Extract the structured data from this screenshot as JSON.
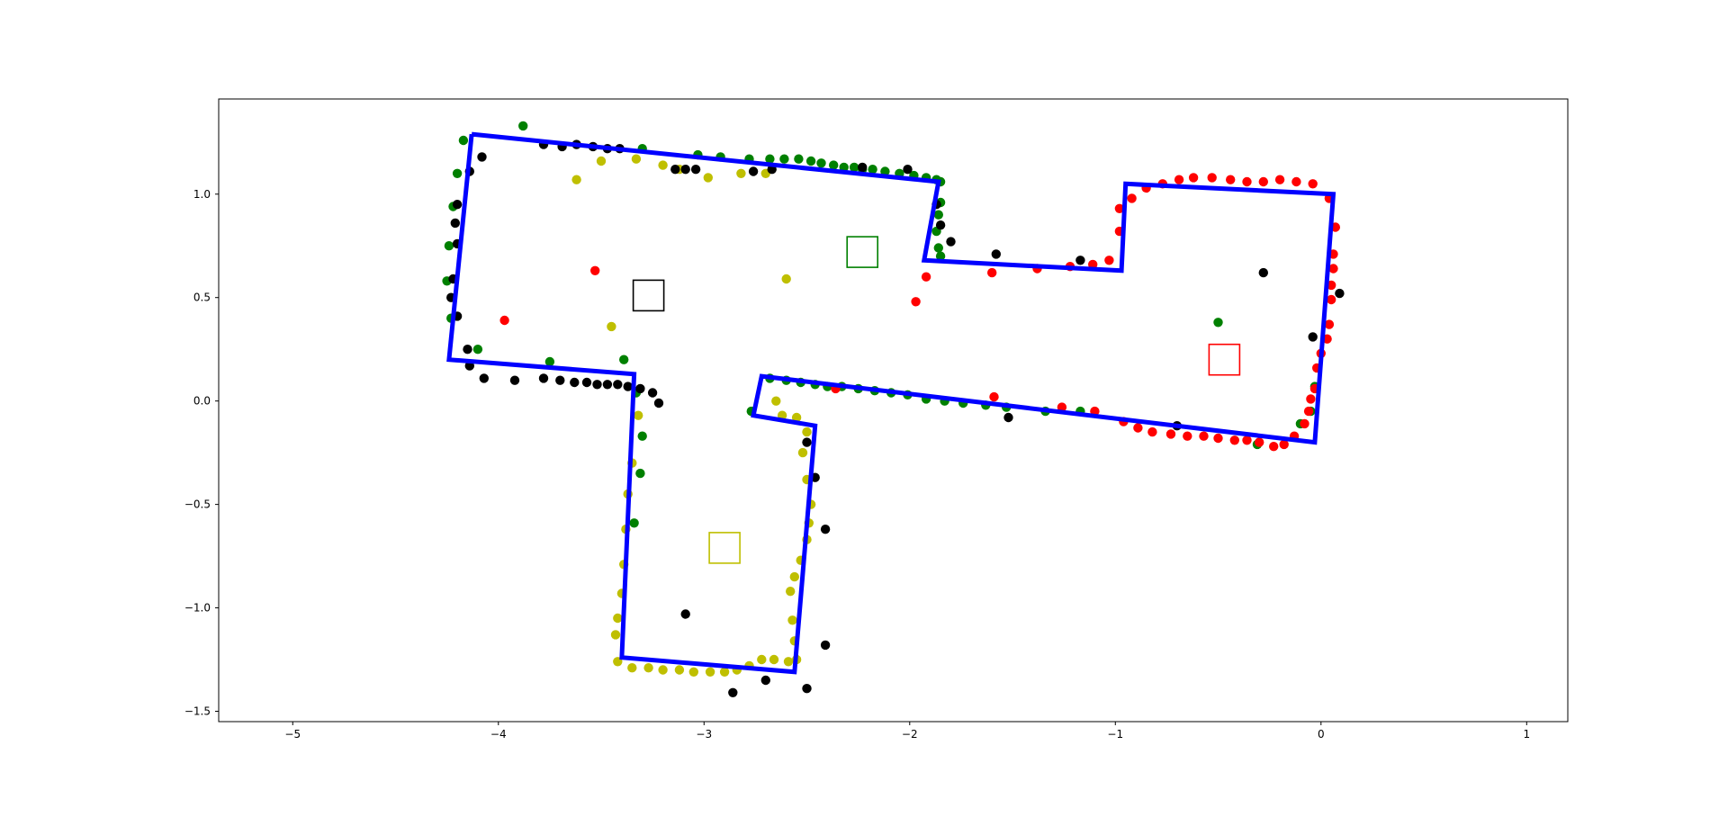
{
  "chart_data": {
    "type": "scatter",
    "title": "",
    "xlabel": "",
    "ylabel": "",
    "xlim": [
      -5.36,
      1.2
    ],
    "ylim": [
      -1.55,
      1.46
    ],
    "grid": false,
    "legend": "none",
    "xticks": [
      -5,
      -4,
      -3,
      -2,
      -1,
      0,
      1
    ],
    "yticks": [
      -1.5,
      -1.0,
      -0.5,
      0.0,
      0.5,
      1.0
    ],
    "xtick_labels": [
      "−5",
      "−4",
      "−3",
      "−2",
      "−1",
      "0",
      "1"
    ],
    "ytick_labels": [
      "−1.5",
      "−1.0",
      "−0.5",
      "0.0",
      "0.5",
      "1.0"
    ],
    "walls": {
      "color": "#0000ff",
      "points": [
        [
          -4.13,
          1.29
        ],
        [
          -1.86,
          1.06
        ],
        [
          -1.93,
          0.68
        ],
        [
          -0.97,
          0.63
        ],
        [
          -0.95,
          1.05
        ],
        [
          0.06,
          1.0
        ],
        [
          -0.03,
          -0.2
        ],
        [
          -2.72,
          0.12
        ],
        [
          -2.76,
          -0.07
        ],
        [
          -2.46,
          -0.12
        ],
        [
          -2.56,
          -1.31
        ],
        [
          -3.4,
          -1.24
        ],
        [
          -3.34,
          0.13
        ],
        [
          -4.24,
          0.2
        ],
        [
          -4.13,
          1.29
        ]
      ]
    },
    "markers": [
      {
        "color": "#000000",
        "x": -3.27,
        "y": 0.51
      },
      {
        "color": "#008000",
        "x": -2.23,
        "y": 0.72
      },
      {
        "color": "#ff0000",
        "x": -0.47,
        "y": 0.2
      },
      {
        "color": "#bfbf00",
        "x": -2.9,
        "y": -0.71
      }
    ],
    "series": [
      {
        "color": "#008000",
        "points": [
          [
            -3.88,
            1.33
          ],
          [
            -4.17,
            1.26
          ],
          [
            -4.2,
            1.1
          ],
          [
            -4.22,
            0.94
          ],
          [
            -4.24,
            0.75
          ],
          [
            -4.25,
            0.58
          ],
          [
            -4.23,
            0.4
          ],
          [
            -4.1,
            0.25
          ],
          [
            -3.75,
            0.19
          ],
          [
            -3.39,
            0.2
          ],
          [
            -3.33,
            0.04
          ],
          [
            -3.3,
            -0.17
          ],
          [
            -3.31,
            -0.35
          ],
          [
            -3.34,
            -0.59
          ],
          [
            -3.3,
            1.22
          ],
          [
            -3.03,
            1.19
          ],
          [
            -2.92,
            1.18
          ],
          [
            -2.78,
            1.17
          ],
          [
            -2.68,
            1.17
          ],
          [
            -2.61,
            1.17
          ],
          [
            -2.54,
            1.17
          ],
          [
            -2.48,
            1.16
          ],
          [
            -2.43,
            1.15
          ],
          [
            -2.37,
            1.14
          ],
          [
            -2.32,
            1.13
          ],
          [
            -2.27,
            1.13
          ],
          [
            -2.23,
            1.12
          ],
          [
            -2.18,
            1.12
          ],
          [
            -2.12,
            1.11
          ],
          [
            -2.05,
            1.1
          ],
          [
            -1.98,
            1.09
          ],
          [
            -1.92,
            1.08
          ],
          [
            -1.87,
            1.07
          ],
          [
            -1.85,
            1.06
          ],
          [
            -1.85,
            0.96
          ],
          [
            -1.86,
            0.9
          ],
          [
            -1.87,
            0.82
          ],
          [
            -1.86,
            0.74
          ],
          [
            -1.85,
            0.7
          ],
          [
            -2.77,
            -0.05
          ],
          [
            -2.68,
            0.11
          ],
          [
            -2.6,
            0.1
          ],
          [
            -2.53,
            0.09
          ],
          [
            -2.46,
            0.08
          ],
          [
            -2.4,
            0.07
          ],
          [
            -2.33,
            0.07
          ],
          [
            -2.25,
            0.06
          ],
          [
            -2.17,
            0.05
          ],
          [
            -2.09,
            0.04
          ],
          [
            -2.01,
            0.03
          ],
          [
            -1.92,
            0.01
          ],
          [
            -1.83,
            0.0
          ],
          [
            -1.74,
            -0.01
          ],
          [
            -1.63,
            -0.02
          ],
          [
            -1.53,
            -0.03
          ],
          [
            -1.34,
            -0.05
          ],
          [
            -1.17,
            -0.05
          ],
          [
            -0.5,
            0.38
          ],
          [
            -0.05,
            -0.05
          ],
          [
            -0.03,
            0.07
          ],
          [
            -0.1,
            -0.11
          ],
          [
            -0.31,
            -0.21
          ]
        ]
      },
      {
        "color": "#ff0000",
        "points": [
          [
            -3.53,
            0.63
          ],
          [
            -3.97,
            0.39
          ],
          [
            -1.92,
            0.6
          ],
          [
            -1.97,
            0.48
          ],
          [
            -1.6,
            0.62
          ],
          [
            -1.38,
            0.64
          ],
          [
            -1.22,
            0.65
          ],
          [
            -1.11,
            0.66
          ],
          [
            -1.03,
            0.68
          ],
          [
            -0.98,
            0.82
          ],
          [
            -0.98,
            0.93
          ],
          [
            -0.92,
            0.98
          ],
          [
            -0.85,
            1.03
          ],
          [
            -0.77,
            1.05
          ],
          [
            -0.69,
            1.07
          ],
          [
            -0.62,
            1.08
          ],
          [
            -0.53,
            1.08
          ],
          [
            -0.44,
            1.07
          ],
          [
            -0.36,
            1.06
          ],
          [
            -0.28,
            1.06
          ],
          [
            -0.2,
            1.07
          ],
          [
            -0.12,
            1.06
          ],
          [
            -0.04,
            1.05
          ],
          [
            0.04,
            0.98
          ],
          [
            0.07,
            0.84
          ],
          [
            0.06,
            0.71
          ],
          [
            0.06,
            0.64
          ],
          [
            0.05,
            0.56
          ],
          [
            0.05,
            0.49
          ],
          [
            0.04,
            0.37
          ],
          [
            0.03,
            0.3
          ],
          [
            0.0,
            0.23
          ],
          [
            -0.02,
            0.16
          ],
          [
            -0.03,
            0.06
          ],
          [
            -0.05,
            0.01
          ],
          [
            -0.06,
            -0.05
          ],
          [
            -0.08,
            -0.11
          ],
          [
            -0.13,
            -0.17
          ],
          [
            -0.18,
            -0.21
          ],
          [
            -0.23,
            -0.22
          ],
          [
            -0.3,
            -0.2
          ],
          [
            -0.36,
            -0.19
          ],
          [
            -0.42,
            -0.19
          ],
          [
            -0.5,
            -0.18
          ],
          [
            -0.57,
            -0.17
          ],
          [
            -0.65,
            -0.17
          ],
          [
            -0.73,
            -0.16
          ],
          [
            -0.82,
            -0.15
          ],
          [
            -0.89,
            -0.13
          ],
          [
            -0.96,
            -0.1
          ],
          [
            -1.1,
            -0.05
          ],
          [
            -1.26,
            -0.03
          ],
          [
            -1.59,
            0.02
          ],
          [
            -2.36,
            0.06
          ]
        ]
      },
      {
        "color": "#bfbf00",
        "points": [
          [
            -3.62,
            1.07
          ],
          [
            -3.5,
            1.16
          ],
          [
            -3.33,
            1.17
          ],
          [
            -3.2,
            1.14
          ],
          [
            -3.12,
            1.12
          ],
          [
            -2.98,
            1.08
          ],
          [
            -2.82,
            1.1
          ],
          [
            -2.7,
            1.1
          ],
          [
            -2.6,
            0.59
          ],
          [
            -3.45,
            0.36
          ],
          [
            -2.65,
            0.0
          ],
          [
            -2.62,
            -0.07
          ],
          [
            -2.55,
            -0.08
          ],
          [
            -3.32,
            -0.07
          ],
          [
            -3.35,
            -0.3
          ],
          [
            -3.37,
            -0.45
          ],
          [
            -3.38,
            -0.62
          ],
          [
            -3.39,
            -0.79
          ],
          [
            -3.4,
            -0.93
          ],
          [
            -3.42,
            -1.05
          ],
          [
            -3.43,
            -1.13
          ],
          [
            -3.42,
            -1.26
          ],
          [
            -3.35,
            -1.29
          ],
          [
            -3.27,
            -1.29
          ],
          [
            -3.2,
            -1.3
          ],
          [
            -3.12,
            -1.3
          ],
          [
            -3.05,
            -1.31
          ],
          [
            -2.97,
            -1.31
          ],
          [
            -2.9,
            -1.31
          ],
          [
            -2.84,
            -1.3
          ],
          [
            -2.78,
            -1.28
          ],
          [
            -2.72,
            -1.25
          ],
          [
            -2.66,
            -1.25
          ],
          [
            -2.59,
            -1.26
          ],
          [
            -2.55,
            -1.25
          ],
          [
            -2.56,
            -1.16
          ],
          [
            -2.57,
            -1.06
          ],
          [
            -2.58,
            -0.92
          ],
          [
            -2.56,
            -0.85
          ],
          [
            -2.53,
            -0.77
          ],
          [
            -2.5,
            -0.67
          ],
          [
            -2.49,
            -0.59
          ],
          [
            -2.48,
            -0.5
          ],
          [
            -2.5,
            -0.38
          ],
          [
            -2.52,
            -0.25
          ],
          [
            -2.5,
            -0.15
          ]
        ]
      },
      {
        "color": "#000000",
        "points": [
          [
            -4.08,
            1.18
          ],
          [
            -4.14,
            1.11
          ],
          [
            -4.2,
            0.95
          ],
          [
            -4.21,
            0.86
          ],
          [
            -4.2,
            0.76
          ],
          [
            -4.22,
            0.59
          ],
          [
            -4.23,
            0.5
          ],
          [
            -4.2,
            0.41
          ],
          [
            -4.15,
            0.25
          ],
          [
            -4.14,
            0.17
          ],
          [
            -4.07,
            0.11
          ],
          [
            -3.92,
            0.1
          ],
          [
            -3.78,
            0.11
          ],
          [
            -3.7,
            0.1
          ],
          [
            -3.63,
            0.09
          ],
          [
            -3.57,
            0.09
          ],
          [
            -3.52,
            0.08
          ],
          [
            -3.47,
            0.08
          ],
          [
            -3.42,
            0.08
          ],
          [
            -3.37,
            0.07
          ],
          [
            -3.31,
            0.06
          ],
          [
            -3.25,
            0.04
          ],
          [
            -3.22,
            -0.01
          ],
          [
            -3.78,
            1.24
          ],
          [
            -3.69,
            1.23
          ],
          [
            -3.62,
            1.24
          ],
          [
            -3.54,
            1.23
          ],
          [
            -3.47,
            1.22
          ],
          [
            -3.41,
            1.22
          ],
          [
            -3.14,
            1.12
          ],
          [
            -3.09,
            1.12
          ],
          [
            -3.04,
            1.12
          ],
          [
            -2.76,
            1.11
          ],
          [
            -2.67,
            1.12
          ],
          [
            -2.23,
            1.13
          ],
          [
            -2.01,
            1.12
          ],
          [
            -1.87,
            0.95
          ],
          [
            -1.85,
            0.85
          ],
          [
            -1.8,
            0.77
          ],
          [
            -1.58,
            0.71
          ],
          [
            -1.17,
            0.68
          ],
          [
            -0.28,
            0.62
          ],
          [
            0.09,
            0.52
          ],
          [
            -0.04,
            0.31
          ],
          [
            -1.52,
            -0.08
          ],
          [
            -0.7,
            -0.12
          ],
          [
            -2.5,
            -0.2
          ],
          [
            -2.46,
            -0.37
          ],
          [
            -2.41,
            -0.62
          ],
          [
            -2.41,
            -1.18
          ],
          [
            -2.5,
            -1.39
          ],
          [
            -2.7,
            -1.35
          ],
          [
            -2.86,
            -1.41
          ],
          [
            -3.09,
            -1.03
          ]
        ]
      }
    ]
  }
}
